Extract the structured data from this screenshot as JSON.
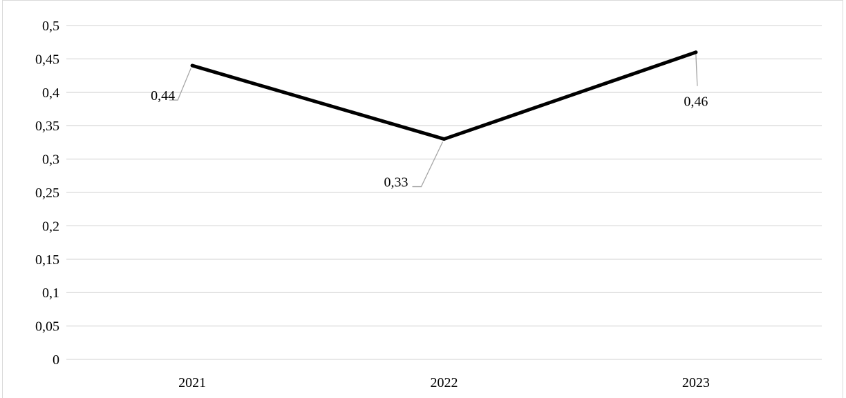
{
  "chart_data": {
    "type": "line",
    "title": "",
    "xlabel": "",
    "ylabel": "",
    "categories": [
      "2021",
      "2022",
      "2023"
    ],
    "series": [
      {
        "values": [
          0.44,
          0.33,
          0.46
        ],
        "data_labels": [
          "0,44",
          "0,33",
          "0,46"
        ],
        "color": "#000000"
      }
    ],
    "ylim": [
      0,
      0.5
    ],
    "y_ticks": [
      0,
      0.05,
      0.1,
      0.15,
      0.2,
      0.25,
      0.3,
      0.35,
      0.4,
      0.45,
      0.5
    ],
    "y_tick_labels": [
      "0",
      "0,05",
      "0,1",
      "0,15",
      "0,2",
      "0,25",
      "0,3",
      "0,35",
      "0,4",
      "0,45",
      "0,5"
    ],
    "grid": true,
    "legend": "none",
    "gridline_color": "#d9d9d9",
    "leader_line_color": "#a6a6a6"
  }
}
